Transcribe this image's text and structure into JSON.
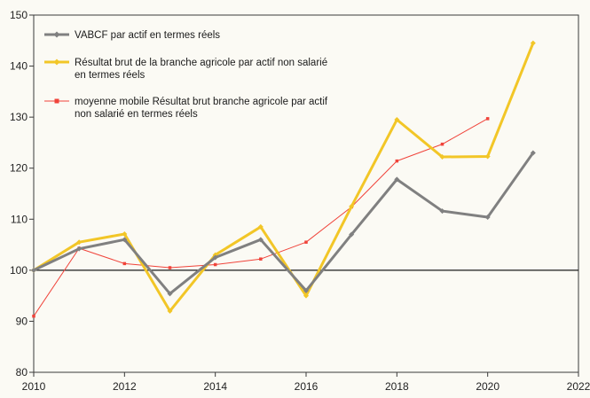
{
  "chart_data": {
    "type": "line",
    "title": "",
    "xlabel": "",
    "ylabel": "",
    "xlim": [
      2010,
      2022
    ],
    "ylim": [
      80,
      150
    ],
    "x_ticks": [
      2010,
      2012,
      2014,
      2016,
      2018,
      2020,
      2022
    ],
    "y_ticks": [
      80,
      90,
      100,
      110,
      120,
      130,
      140,
      150
    ],
    "reference_line": 100,
    "grid": false,
    "legend_position": "top-left",
    "series": [
      {
        "name": "VABCF par actif en termes réels",
        "color": "#808080",
        "marker": "diamond",
        "line_width": "thick",
        "x": [
          2010,
          2011,
          2012,
          2013,
          2014,
          2015,
          2016,
          2017,
          2018,
          2019,
          2020,
          2021
        ],
        "y": [
          100,
          104.2,
          106,
          95.4,
          102.5,
          106,
          96,
          107,
          117.8,
          111.6,
          110.4,
          123
        ]
      },
      {
        "name": "Résultat brut de la branche agricole par actif non salarié en termes réels",
        "color": "#f2c627",
        "marker": "diamond",
        "line_width": "thick",
        "x": [
          2010,
          2011,
          2012,
          2013,
          2014,
          2015,
          2016,
          2017,
          2018,
          2019,
          2020,
          2021
        ],
        "y": [
          100,
          105.5,
          107.1,
          92,
          103,
          108.5,
          95,
          112.5,
          129.5,
          122.2,
          122.3,
          144.5
        ]
      },
      {
        "name": "moyenne mobile Résultat brut branche agricole par actif non salarié en termes réels",
        "color": "#f0433a",
        "marker": "square",
        "line_width": "thin",
        "x": [
          2010,
          2011,
          2012,
          2013,
          2014,
          2015,
          2016,
          2017,
          2018,
          2019,
          2020
        ],
        "y": [
          91,
          104.3,
          101.3,
          100.5,
          101.1,
          102.2,
          105.5,
          112.4,
          121.4,
          124.7,
          129.7
        ]
      }
    ]
  }
}
